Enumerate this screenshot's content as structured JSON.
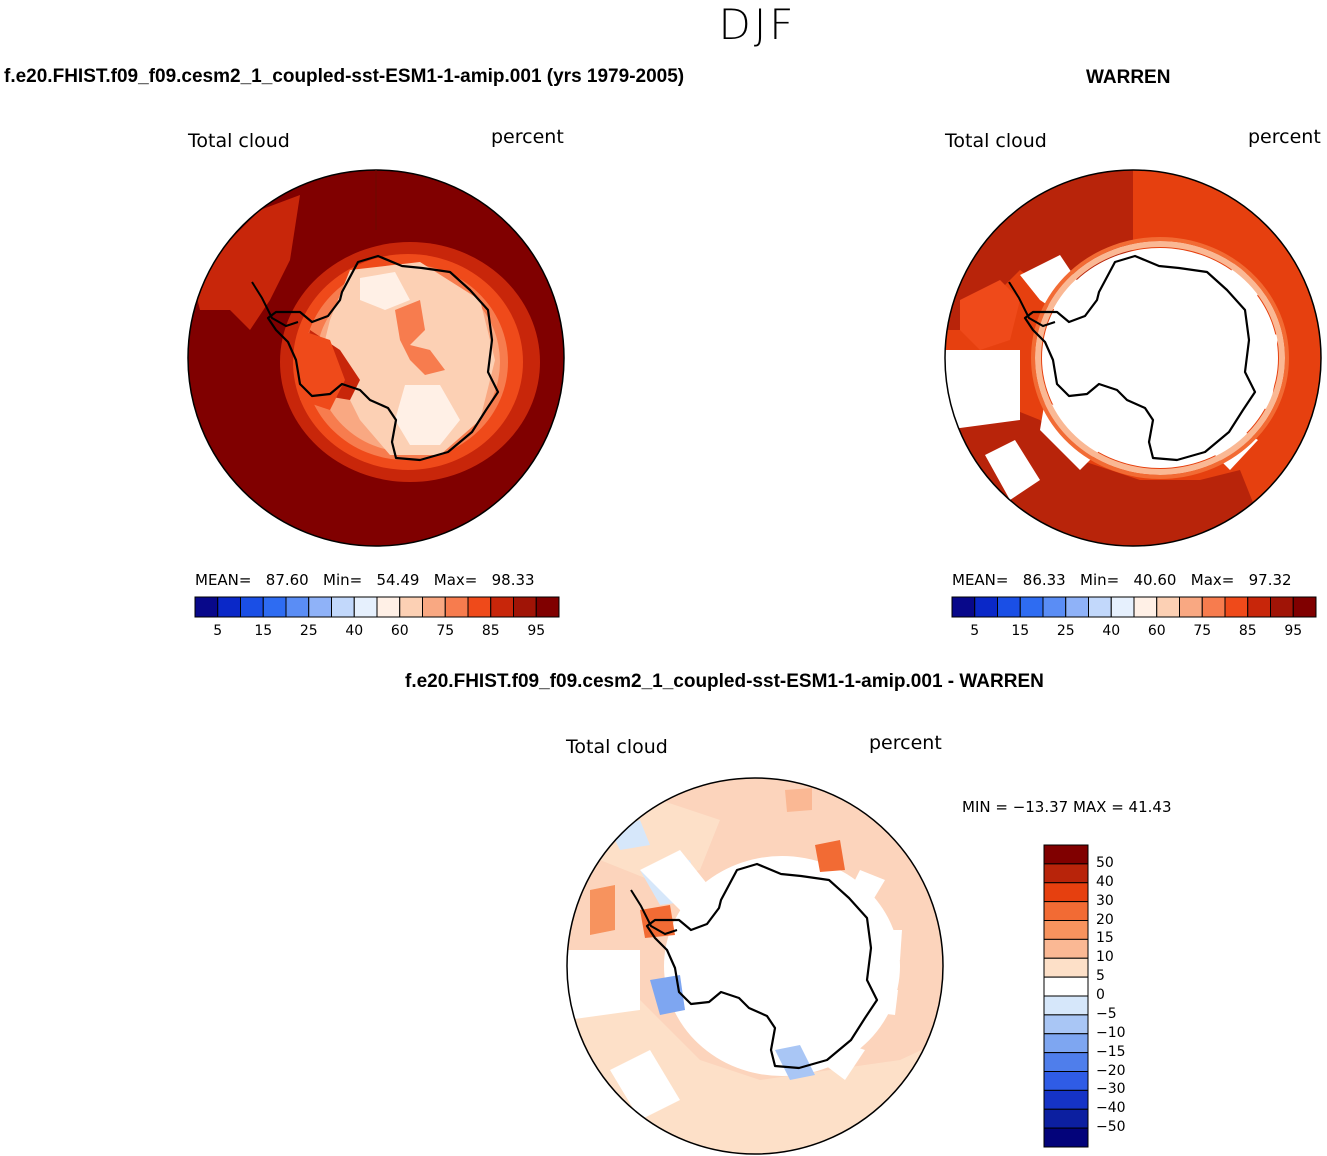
{
  "figure": {
    "title": "DJF",
    "bottom_title": "f.e20.FHIST.f09_f09.cesm2_1_coupled-sst-ESM1-1-amip.001 - WARREN"
  },
  "panels": {
    "model": {
      "title": "f.e20.FHIST.f09_f09.cesm2_1_coupled-sst-ESM1-1-amip.001 (yrs 1979-2005)",
      "variable": "Total cloud",
      "units": "percent",
      "stats": "MEAN=   87.60   Min=   54.49   Max=   98.33"
    },
    "obs": {
      "title": "WARREN",
      "variable": "Total cloud",
      "units": "percent",
      "stats": "MEAN=   86.33   Min=   40.60   Max=   97.32"
    },
    "diff": {
      "variable": "Total cloud",
      "units": "percent",
      "stats": "MIN = −13.37 MAX =   41.43"
    }
  },
  "colorbar_abs": {
    "ticks": [
      "5",
      "15",
      "25",
      "40",
      "60",
      "75",
      "85",
      "95"
    ],
    "colors": [
      "#08088a",
      "#0a28c8",
      "#1a4fe6",
      "#2e6cf2",
      "#5a8df5",
      "#8fb2f8",
      "#c2d8fb",
      "#e6f0fd",
      "#fff0e6",
      "#fcd0b4",
      "#f9a882",
      "#f77c4e",
      "#ef4a1a",
      "#c8260a",
      "#a01406",
      "#800000"
    ]
  },
  "colorbar_diff": {
    "labels": [
      "50",
      "40",
      "30",
      "20",
      "15",
      "10",
      "5",
      "0",
      "−5",
      "−10",
      "−15",
      "−20",
      "−30",
      "−40",
      "−50"
    ],
    "colors": [
      "#800000",
      "#b8240a",
      "#e6400f",
      "#f26b34",
      "#f7935e",
      "#fab894",
      "#fde0c8",
      "#ffffff",
      "#d6e7fa",
      "#a9c6f5",
      "#7ea6f1",
      "#4f7eeb",
      "#2f5ce6",
      "#1533c6",
      "#0c1fa0",
      "#03037a"
    ]
  },
  "chart_data": [
    {
      "type": "heatmap",
      "panel": "model",
      "projection": "south polar stereographic",
      "variable": "Total cloud",
      "units": "percent",
      "mean": 87.6,
      "min": 54.49,
      "max": 98.33,
      "contour_levels": [
        5,
        10,
        15,
        20,
        25,
        30,
        40,
        50,
        60,
        70,
        75,
        80,
        85,
        90,
        95
      ]
    },
    {
      "type": "heatmap",
      "panel": "obs",
      "projection": "south polar stereographic",
      "variable": "Total cloud",
      "units": "percent",
      "mean": 86.33,
      "min": 40.6,
      "max": 97.32,
      "contour_levels": [
        5,
        10,
        15,
        20,
        25,
        30,
        40,
        50,
        60,
        70,
        75,
        80,
        85,
        90,
        95
      ]
    },
    {
      "type": "heatmap",
      "panel": "diff",
      "projection": "south polar stereographic",
      "variable": "Total cloud",
      "units": "percent",
      "min": -13.37,
      "max": 41.43,
      "contour_levels": [
        -50,
        -40,
        -30,
        -20,
        -15,
        -10,
        -5,
        0,
        5,
        10,
        15,
        20,
        30,
        40,
        50
      ]
    }
  ]
}
